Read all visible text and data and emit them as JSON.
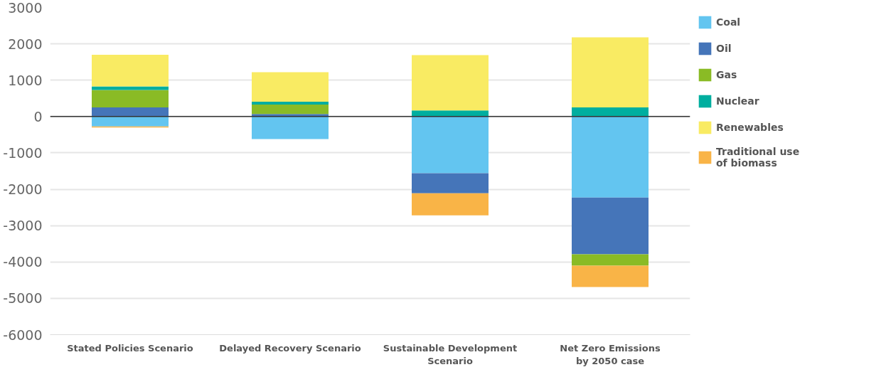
{
  "chart_data": {
    "type": "bar",
    "stacked": true,
    "categories": [
      "Stated Policies Scenario",
      "Delayed Recovery Scenario",
      "Sustainable Development\nScenario",
      "Net Zero Emissions\nby 2050 case"
    ],
    "series": [
      {
        "name": "Coal",
        "color": "#63c5f0",
        "values": [
          -270,
          -620,
          -1560,
          -2230
        ]
      },
      {
        "name": "Oil",
        "color": "#4575b9",
        "values": [
          250,
          70,
          -550,
          -1560
        ]
      },
      {
        "name": "Gas",
        "color": "#8abb25",
        "values": [
          480,
          260,
          0,
          -310
        ]
      },
      {
        "name": "Nuclear",
        "color": "#00ae9f",
        "values": [
          100,
          80,
          170,
          250
        ]
      },
      {
        "name": "Renewables",
        "color": "#f9eb63",
        "values": [
          870,
          810,
          1520,
          1930
        ]
      },
      {
        "name": "Traditional use of biomass",
        "color": "#f9b447",
        "values": [
          -30,
          0,
          -610,
          -590
        ]
      }
    ],
    "ylim": [
      -6000,
      3000
    ],
    "yticks": [
      -6000,
      -5000,
      -4000,
      -3000,
      -2000,
      -1000,
      0,
      1000,
      2000,
      3000
    ],
    "ref_lines": [
      {
        "axis": "y",
        "value": 0,
        "color": "#333333"
      }
    ],
    "grid": "y",
    "legend": "right"
  }
}
